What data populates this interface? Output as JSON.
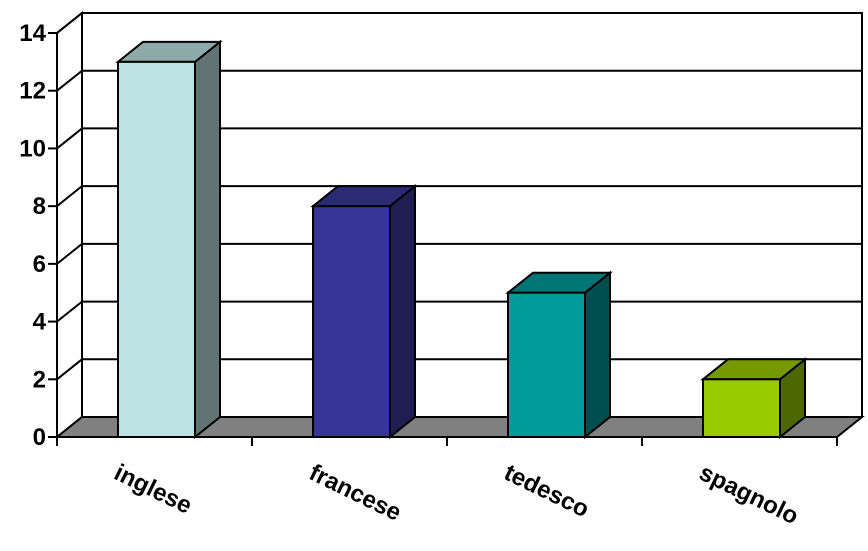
{
  "chart_data": {
    "type": "bar",
    "style": "3d-column",
    "categories": [
      "inglese",
      "francese",
      "tedesco",
      "spagnolo"
    ],
    "values": [
      13,
      8,
      5,
      2
    ],
    "ylim": [
      0,
      14
    ],
    "yticks": [
      0,
      2,
      4,
      6,
      8,
      10,
      12,
      14
    ],
    "grid": true,
    "legend": "none",
    "colors": {
      "bars": [
        {
          "front": "#bde2e4",
          "side": "#627375",
          "top": "#8ea9aa"
        },
        {
          "front": "#373598",
          "side": "#1f1f54",
          "top": "#2b2a75"
        },
        {
          "front": "#019b9b",
          "side": "#004f50",
          "top": "#007575"
        },
        {
          "front": "#99cc00",
          "side": "#4e6800",
          "top": "#759a00"
        }
      ],
      "floor": "#808080",
      "grid": "#000000"
    }
  }
}
